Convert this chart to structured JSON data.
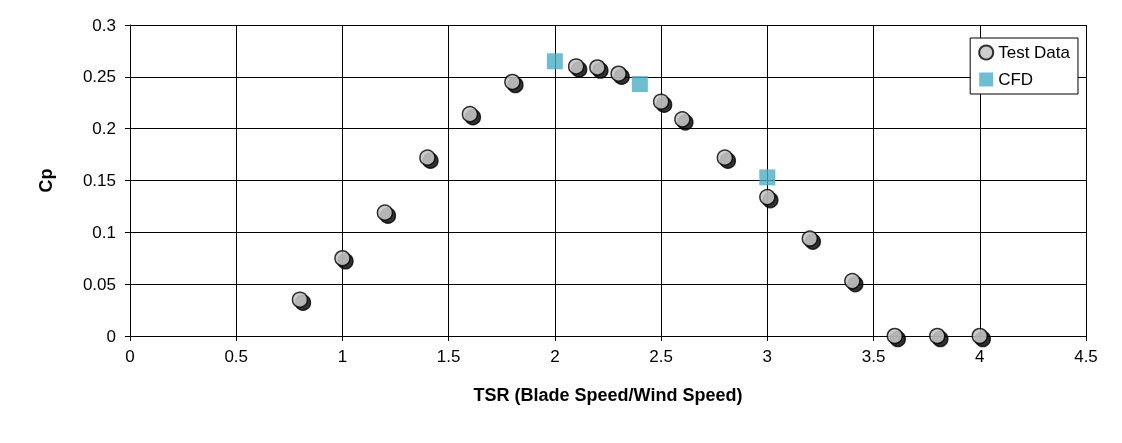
{
  "chart_data": {
    "type": "scatter",
    "xlabel": "TSR (Blade Speed/Wind Speed)",
    "ylabel": "Cp",
    "series": [
      {
        "name": "Test Data",
        "color": "#c0c0c0",
        "marker": "circle",
        "x": [
          0.8,
          1.0,
          1.2,
          1.4,
          1.6,
          1.8,
          2.0,
          2.1,
          2.2,
          2.3,
          2.4,
          2.5,
          2.6,
          2.8,
          3.0,
          3.2,
          3.4,
          3.6,
          3.8,
          4.0
        ],
        "values": [
          0.035,
          0.075,
          0.119,
          0.172,
          0.214,
          0.245,
          null,
          0.26,
          0.259,
          0.253,
          null,
          0.226,
          0.209,
          0.172,
          0.134,
          0.094,
          0.053,
          0,
          0,
          0
        ]
      },
      {
        "name": "CFD",
        "color": "#4bacc6",
        "marker": "square",
        "x": [
          2.0,
          2.4,
          3.0
        ],
        "values": [
          0.265,
          0.243,
          0.153
        ]
      }
    ],
    "xlim": [
      0,
      4.5
    ],
    "xticks": [
      0,
      0.5,
      1,
      1.5,
      2,
      2.5,
      3,
      3.5,
      4,
      4.5
    ],
    "ylim": [
      0,
      0.3
    ],
    "yticks": [
      0,
      0.05,
      0.1,
      0.15,
      0.2,
      0.25,
      0.3
    ],
    "grid": true,
    "legend": "top right"
  }
}
